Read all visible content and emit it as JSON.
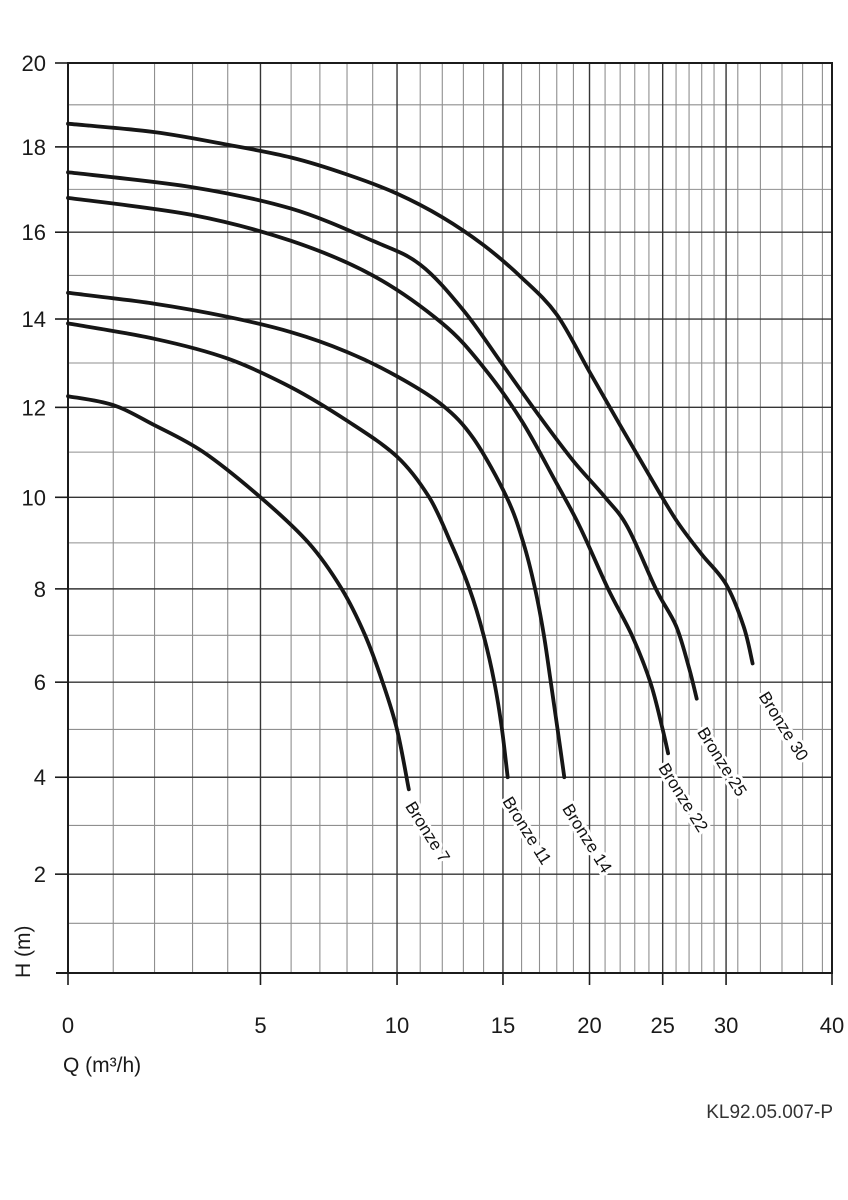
{
  "footer": {
    "code": "KL92.05.007-P"
  },
  "chart_data": {
    "type": "line",
    "title": "",
    "xlabel": "Q (m³/h)",
    "ylabel": "H (m)",
    "xlim": [
      0,
      40
    ],
    "ylim": [
      0,
      20
    ],
    "grid": "on",
    "legend_position": "labels-on-curves",
    "axis_scale_note": "both axes compressed non-linearly (log-like toward high values)",
    "x_scale": {
      "type": "log1p",
      "k": 10
    },
    "y_scale": {
      "type": "log1p",
      "k": 100
    },
    "x_ticks_labeled": [
      0,
      5,
      10,
      15,
      20,
      25,
      30,
      40
    ],
    "x_ticks_minor": [
      1,
      2,
      3,
      4,
      6,
      7,
      8,
      9,
      11,
      12,
      13,
      14,
      16,
      17,
      18,
      19,
      21,
      22,
      23,
      24,
      26,
      27,
      28,
      29,
      31,
      33,
      35,
      37,
      39
    ],
    "y_ticks_labeled": [
      2,
      4,
      6,
      8,
      10,
      12,
      14,
      16,
      18,
      20
    ],
    "y_ticks_minor": [
      1,
      3,
      5,
      7,
      9,
      11,
      13,
      15,
      17,
      19
    ],
    "series": [
      {
        "name": "Bronze 7",
        "points": [
          [
            0,
            12.25
          ],
          [
            1,
            12.05
          ],
          [
            2,
            11.6
          ],
          [
            3.3,
            11
          ],
          [
            5,
            10
          ],
          [
            6.6,
            9
          ],
          [
            7.8,
            8
          ],
          [
            8.7,
            7
          ],
          [
            9.4,
            6
          ],
          [
            10,
            5
          ],
          [
            10.5,
            3.75
          ]
        ],
        "label_at": [
          10.33,
          3.4
        ]
      },
      {
        "name": "Bronze 11",
        "points": [
          [
            0,
            13.9
          ],
          [
            2,
            13.55
          ],
          [
            4,
            13.1
          ],
          [
            6,
            12.45
          ],
          [
            8,
            11.7
          ],
          [
            10,
            10.9
          ],
          [
            11.4,
            10
          ],
          [
            12.4,
            9
          ],
          [
            13.3,
            8
          ],
          [
            14,
            7
          ],
          [
            14.55,
            6
          ],
          [
            14.95,
            5
          ],
          [
            15.25,
            4
          ]
        ],
        "label_at": [
          14.95,
          3.5
        ]
      },
      {
        "name": "Bronze 14",
        "points": [
          [
            0,
            14.6
          ],
          [
            2,
            14.35
          ],
          [
            4,
            14.05
          ],
          [
            6,
            13.7
          ],
          [
            8,
            13.25
          ],
          [
            10,
            12.7
          ],
          [
            12,
            12.05
          ],
          [
            13.5,
            11.3
          ],
          [
            15.2,
            10
          ],
          [
            16.1,
            9
          ],
          [
            16.75,
            8
          ],
          [
            17.25,
            7
          ],
          [
            17.65,
            6
          ],
          [
            18.05,
            5
          ],
          [
            18.45,
            4
          ]
        ],
        "label_at": [
          18.3,
          3.35
        ]
      },
      {
        "name": "Bronze 22",
        "points": [
          [
            0,
            16.8
          ],
          [
            3,
            16.4
          ],
          [
            6,
            15.8
          ],
          [
            9,
            15
          ],
          [
            12,
            13.9
          ],
          [
            14,
            12.9
          ],
          [
            16,
            11.7
          ],
          [
            18,
            10.3
          ],
          [
            19.4,
            9.35
          ],
          [
            21.2,
            8
          ],
          [
            22.8,
            7
          ],
          [
            24.1,
            6
          ],
          [
            25,
            5
          ],
          [
            25.4,
            4.5
          ]
        ],
        "label_at": [
          24.65,
          4.2
        ]
      },
      {
        "name": "Bronze 25",
        "points": [
          [
            0,
            17.4
          ],
          [
            3,
            17.05
          ],
          [
            6,
            16.55
          ],
          [
            9,
            15.8
          ],
          [
            11,
            15.25
          ],
          [
            13,
            14.2
          ],
          [
            15,
            12.95
          ],
          [
            17,
            11.8
          ],
          [
            19,
            10.8
          ],
          [
            21,
            10
          ],
          [
            22.5,
            9.35
          ],
          [
            24.5,
            8
          ],
          [
            26,
            7.2
          ],
          [
            27,
            6.3
          ],
          [
            27.6,
            5.65
          ]
        ],
        "label_at": [
          27.6,
          4.95
        ]
      },
      {
        "name": "Bronze 30",
        "points": [
          [
            0,
            18.55
          ],
          [
            2,
            18.35
          ],
          [
            4,
            18.05
          ],
          [
            6,
            17.75
          ],
          [
            8,
            17.35
          ],
          [
            10,
            16.9
          ],
          [
            12,
            16.35
          ],
          [
            14,
            15.7
          ],
          [
            16,
            14.95
          ],
          [
            18,
            14.1
          ],
          [
            20,
            12.8
          ],
          [
            22,
            11.6
          ],
          [
            24,
            10.5
          ],
          [
            26,
            9.5
          ],
          [
            28,
            8.75
          ],
          [
            30,
            8.1
          ],
          [
            31.5,
            7.2
          ],
          [
            32.3,
            6.4
          ]
        ],
        "label_at": [
          32.8,
          5.7
        ]
      }
    ]
  }
}
